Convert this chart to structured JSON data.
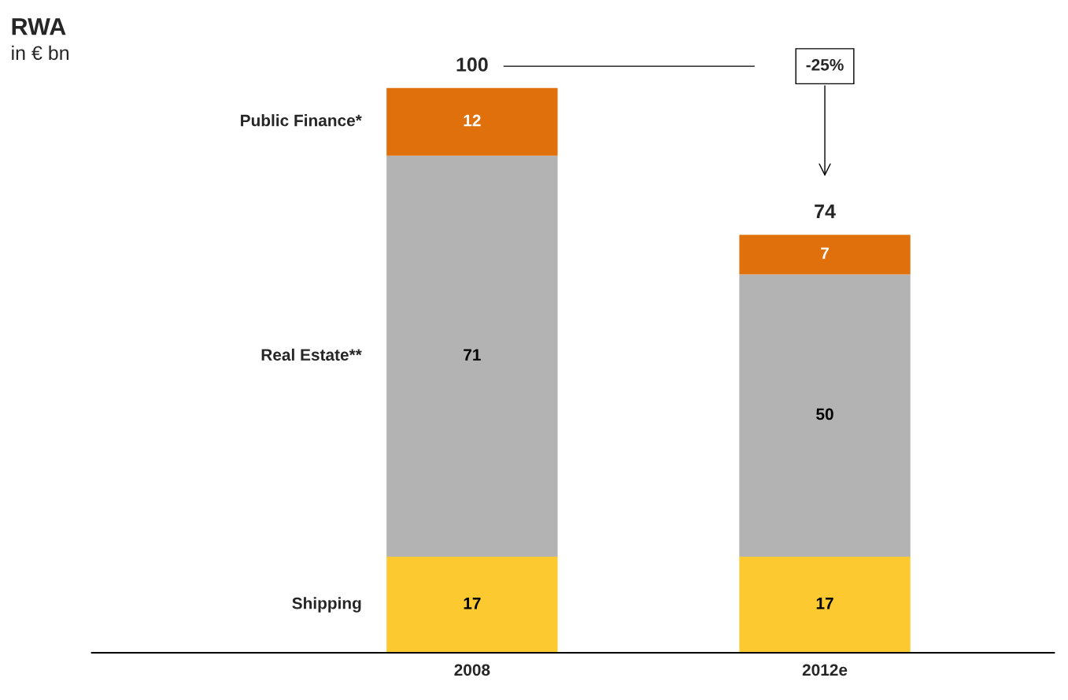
{
  "chart_data": {
    "type": "bar",
    "title": "RWA",
    "subtitle": "in € bn",
    "categories": [
      "2008",
      "2012e"
    ],
    "stacked": true,
    "series": [
      {
        "name": "Shipping",
        "color": "#fdc931",
        "values": [
          17,
          17
        ]
      },
      {
        "name": "Real Estate**",
        "color": "#b3b3b3",
        "values": [
          71,
          50
        ]
      },
      {
        "name": "Public Finance*",
        "color": "#e0700b",
        "values": [
          12,
          7
        ]
      }
    ],
    "data_labels": true,
    "totals": [
      "100",
      "74"
    ],
    "annotations": [
      "-25%"
    ],
    "legend": false,
    "grid": false,
    "tick_labels": "x"
  }
}
